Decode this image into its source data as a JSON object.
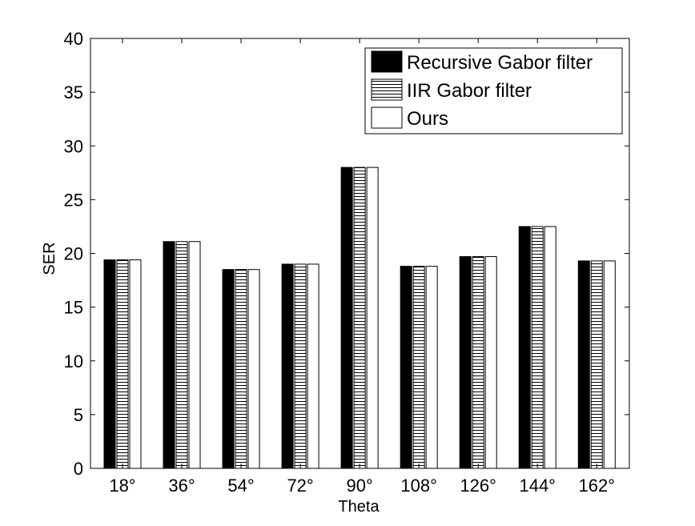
{
  "chart_data": {
    "type": "bar",
    "xlabel": "Theta",
    "ylabel": "SER",
    "ylim": [
      0,
      40
    ],
    "yticks": [
      "0",
      "5",
      "10",
      "15",
      "20",
      "25",
      "30",
      "35",
      "40"
    ],
    "categories": [
      "18°",
      "36°",
      "54°",
      "72°",
      "90°",
      "108°",
      "126°",
      "144°",
      "162°"
    ],
    "grid": false,
    "legend_position": "top-right",
    "series": [
      {
        "name": "Recursive Gabor filter",
        "pattern": "solid-black",
        "values": [
          19.4,
          21.1,
          18.5,
          19.0,
          28.0,
          18.8,
          19.7,
          22.5,
          19.3
        ]
      },
      {
        "name": "IIR Gabor filter",
        "pattern": "horizontal-hatch",
        "values": [
          19.4,
          21.1,
          18.5,
          19.0,
          28.0,
          18.8,
          19.7,
          22.5,
          19.3
        ]
      },
      {
        "name": "Ours",
        "pattern": "white",
        "values": [
          19.4,
          21.1,
          18.5,
          19.0,
          28.0,
          18.8,
          19.7,
          22.5,
          19.3
        ]
      }
    ]
  },
  "colors": {
    "axis": "#000000",
    "solid": "#000000",
    "white": "#ffffff"
  }
}
